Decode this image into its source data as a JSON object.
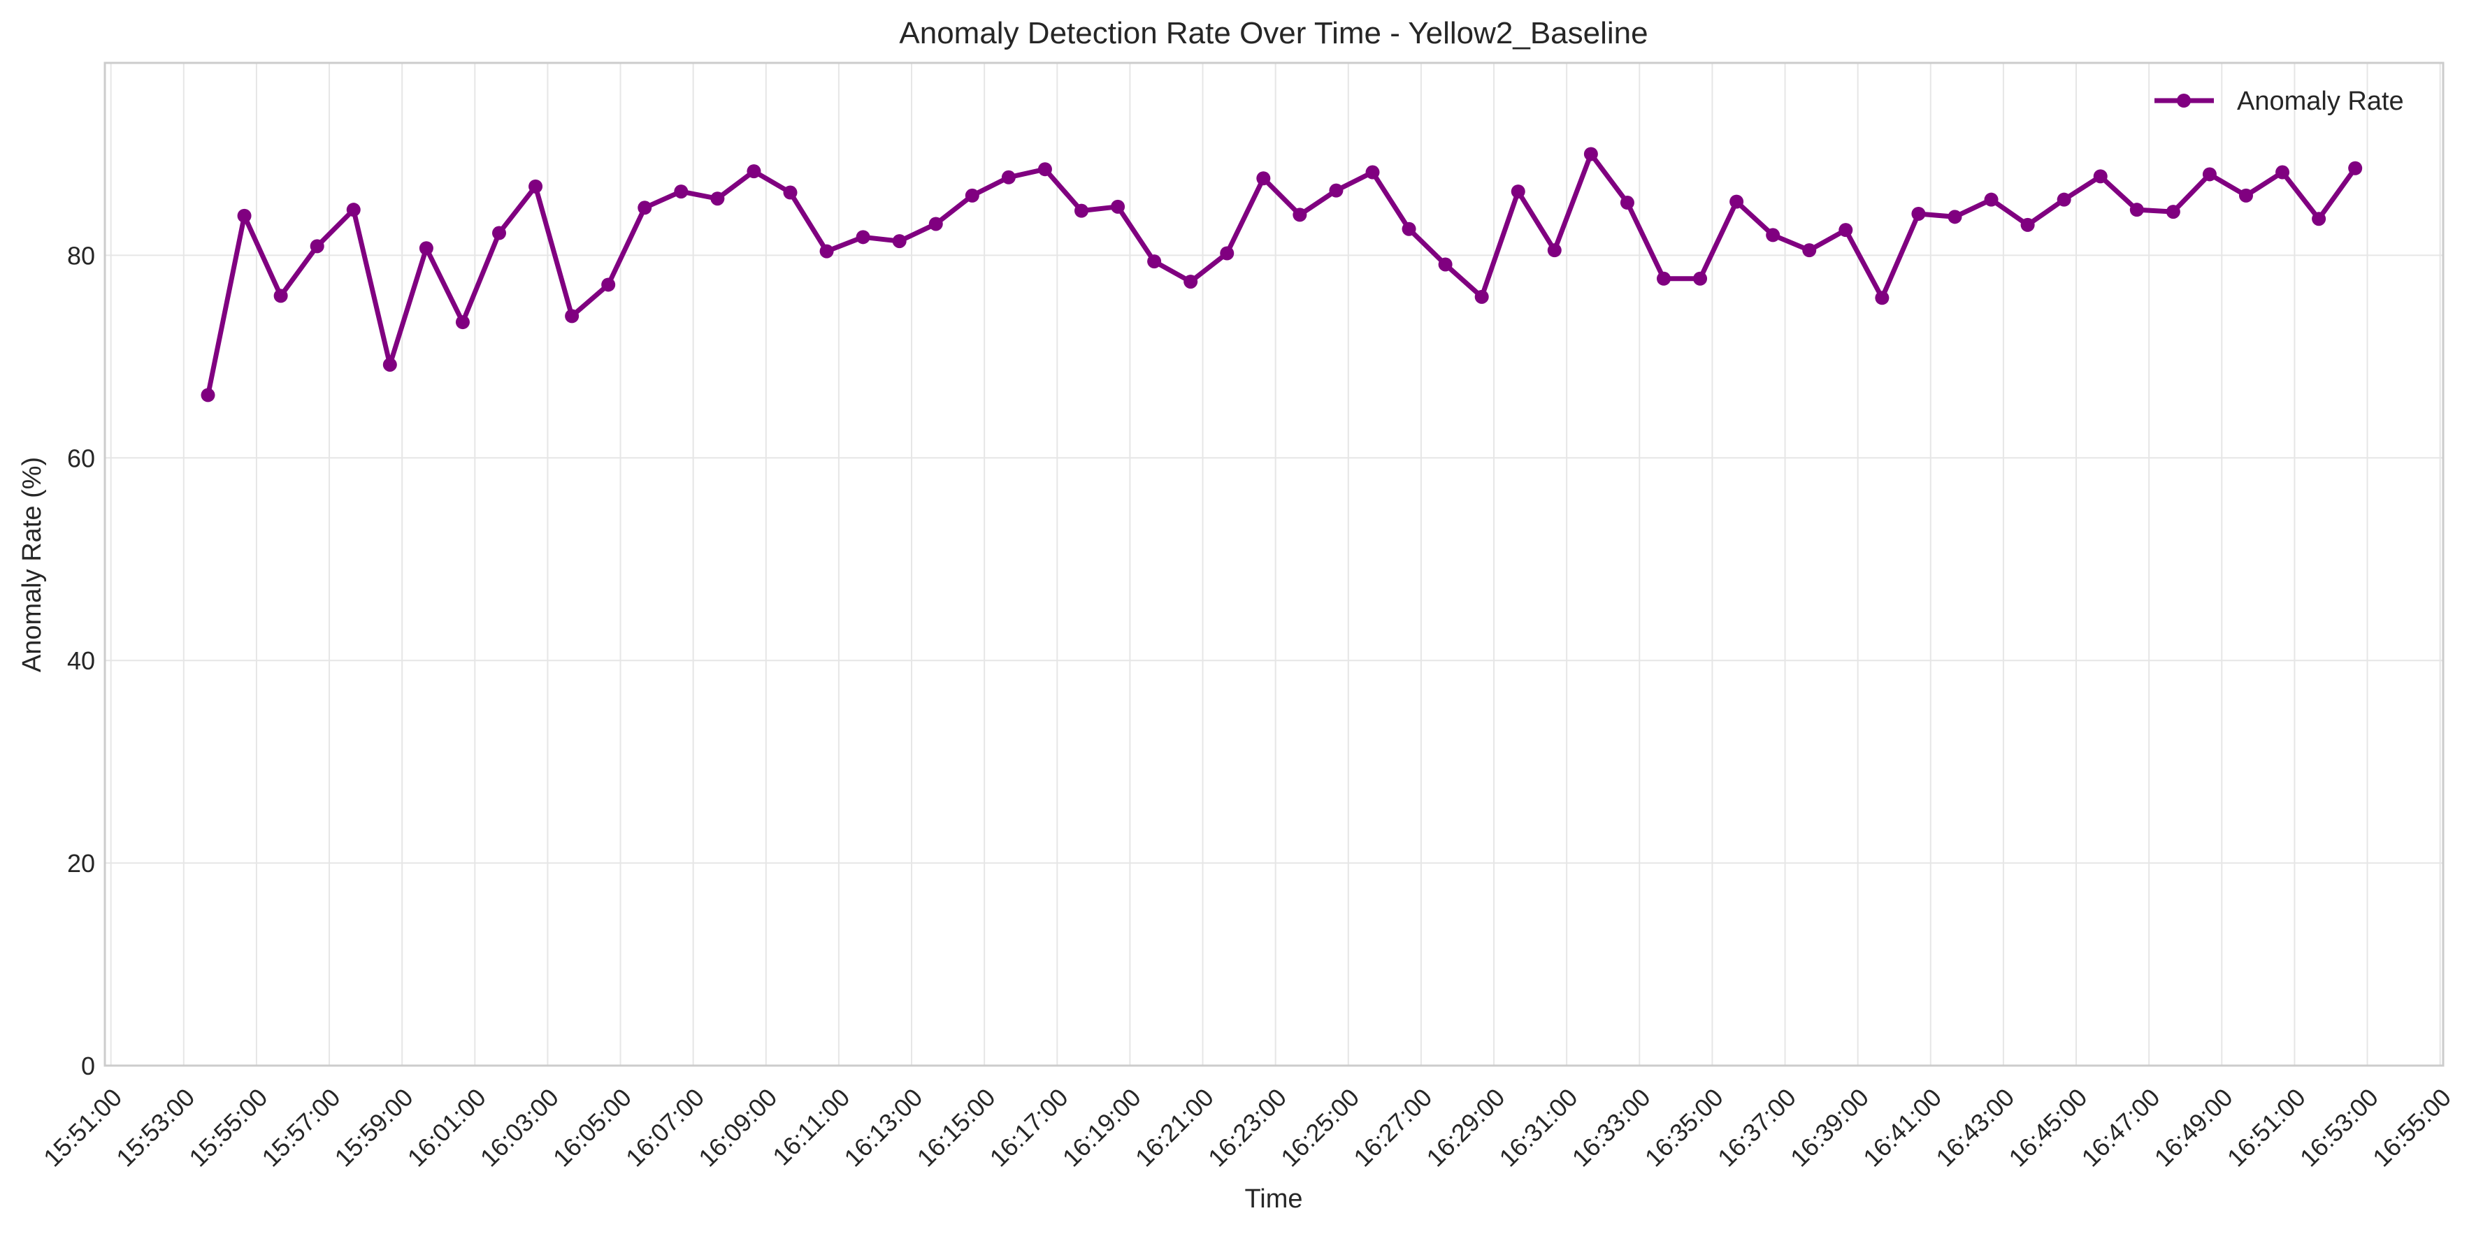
{
  "chart_data": {
    "type": "line",
    "title": "Anomaly Detection Rate Over Time - Yellow2_Baseline",
    "xlabel": "Time",
    "ylabel": "Anomaly Rate (%)",
    "xlim": [
      "15:50:50",
      "16:55:05"
    ],
    "ylim": [
      0,
      99
    ],
    "grid": true,
    "legend_position": "top-right",
    "colors": {
      "line": "#800080",
      "grid": "#e6e6e6",
      "frame": "#cccccc",
      "text": "#262626"
    },
    "x_ticks": [
      "15:51:00",
      "15:53:00",
      "15:55:00",
      "15:57:00",
      "15:59:00",
      "16:01:00",
      "16:03:00",
      "16:05:00",
      "16:07:00",
      "16:09:00",
      "16:11:00",
      "16:13:00",
      "16:15:00",
      "16:17:00",
      "16:19:00",
      "16:21:00",
      "16:23:00",
      "16:25:00",
      "16:27:00",
      "16:29:00",
      "16:31:00",
      "16:33:00",
      "16:35:00",
      "16:37:00",
      "16:39:00",
      "16:41:00",
      "16:43:00",
      "16:45:00",
      "16:47:00",
      "16:49:00",
      "16:51:00",
      "16:53:00",
      "16:55:00"
    ],
    "y_ticks": [
      0,
      20,
      40,
      60,
      80
    ],
    "series": [
      {
        "name": "Anomaly Rate",
        "x": [
          "15:53:40",
          "15:54:40",
          "15:55:40",
          "15:56:40",
          "15:57:40",
          "15:58:40",
          "15:59:40",
          "16:00:40",
          "16:01:40",
          "16:02:40",
          "16:03:40",
          "16:04:40",
          "16:05:40",
          "16:06:40",
          "16:07:40",
          "16:08:40",
          "16:09:40",
          "16:10:40",
          "16:11:40",
          "16:12:40",
          "16:13:40",
          "16:14:40",
          "16:15:40",
          "16:16:40",
          "16:17:40",
          "16:18:40",
          "16:19:40",
          "16:20:40",
          "16:21:40",
          "16:22:40",
          "16:23:40",
          "16:24:40",
          "16:25:40",
          "16:26:40",
          "16:27:40",
          "16:28:40",
          "16:29:40",
          "16:30:40",
          "16:31:40",
          "16:32:40",
          "16:33:40",
          "16:34:40",
          "16:35:40",
          "16:36:40",
          "16:37:40",
          "16:38:40",
          "16:39:40",
          "16:40:40",
          "16:41:40",
          "16:42:40",
          "16:43:40",
          "16:44:40",
          "16:45:40",
          "16:46:40",
          "16:47:40",
          "16:48:40",
          "16:49:40",
          "16:50:40",
          "16:51:40",
          "16:52:40"
        ],
        "values": [
          66.2,
          83.9,
          76.0,
          80.9,
          84.5,
          69.2,
          80.7,
          73.4,
          82.2,
          86.8,
          74.0,
          77.1,
          84.7,
          86.3,
          85.6,
          88.3,
          86.2,
          80.4,
          81.8,
          81.4,
          83.1,
          85.9,
          87.7,
          88.5,
          84.4,
          84.8,
          79.4,
          77.4,
          80.2,
          87.6,
          84.0,
          86.4,
          88.2,
          82.6,
          79.1,
          75.9,
          86.3,
          80.5,
          90.0,
          85.2,
          77.7,
          77.7,
          85.3,
          82.0,
          80.5,
          82.5,
          75.8,
          84.1,
          83.8,
          85.5,
          83.0,
          85.5,
          87.8,
          84.5,
          84.3,
          88.0,
          85.9,
          88.2,
          83.6,
          88.6
        ]
      }
    ]
  }
}
